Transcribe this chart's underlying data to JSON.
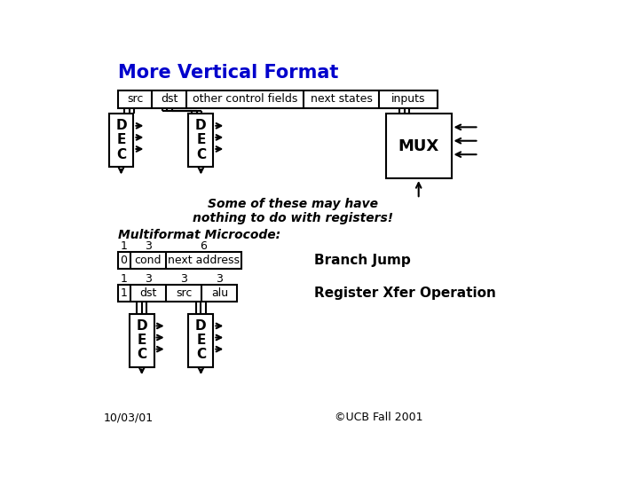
{
  "title": "More Vertical Format",
  "title_color": "#0000CC",
  "bg_color": "#FFFFFF",
  "text_color": "#000000",
  "top_fields": [
    "src",
    "dst",
    "other control fields",
    "next states",
    "inputs"
  ],
  "note_text": "Some of these may have\nnothing to do with registers!",
  "multiformat_label": "Multiformat Microcode:",
  "row1_nums": [
    "1",
    "3",
    "6"
  ],
  "row1_cells": [
    "0",
    "cond",
    "next address"
  ],
  "row1_label": "Branch Jump",
  "row2_nums": [
    "1",
    "3",
    "3",
    "3"
  ],
  "row2_cells": [
    "1",
    "dst",
    "src",
    "alu"
  ],
  "row2_label": "Register Xfer Operation",
  "footer_left": "10/03/01",
  "footer_right": "©UCB Fall 2001"
}
